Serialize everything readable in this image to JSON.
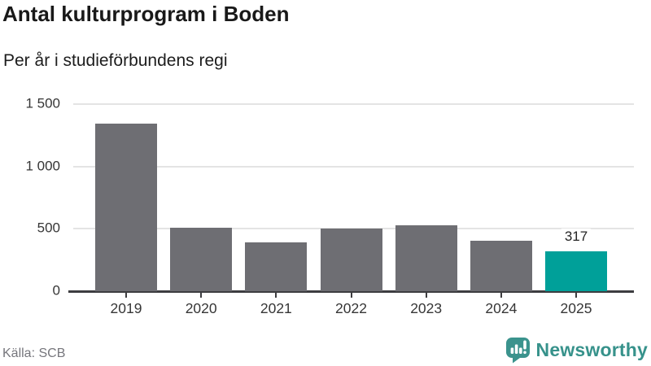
{
  "header": {
    "title": "Antal kulturprogram i Boden",
    "subtitle": "Per år i studieförbundens regi"
  },
  "chart_data": {
    "type": "bar",
    "title": "Antal kulturprogram i Boden",
    "subtitle": "Per år i studieförbundens regi",
    "categories": [
      "2019",
      "2020",
      "2021",
      "2022",
      "2023",
      "2024",
      "2025"
    ],
    "values": [
      1345,
      510,
      390,
      505,
      530,
      405,
      317
    ],
    "ylim": [
      0,
      1500
    ],
    "yticks": [
      {
        "value": 0,
        "label": "0"
      },
      {
        "value": 500,
        "label": "500"
      },
      {
        "value": 1000,
        "label": "1 000"
      },
      {
        "value": 1500,
        "label": "1 500"
      }
    ],
    "grid": "horizontal",
    "legend": "none",
    "bar_color": "#6E6E73",
    "highlight_index": 6,
    "highlight_color": "#00A099",
    "value_label": {
      "index": 6,
      "text": "317"
    },
    "xlabel": "",
    "ylabel": ""
  },
  "footer": {
    "source": "Källa: SCB",
    "brand": "Newsworthy",
    "brand_color": "#37928B",
    "logo_icon_color": "#3B938D"
  },
  "icons": {
    "logo": "newsworthy-speech-bubble-bar-chart-icon"
  },
  "colors": {
    "gridline": "#E4E4E4",
    "axis": "#3D3D40",
    "text_dark": "#191919",
    "text_axis": "#363636",
    "text_muted": "#76767C"
  }
}
